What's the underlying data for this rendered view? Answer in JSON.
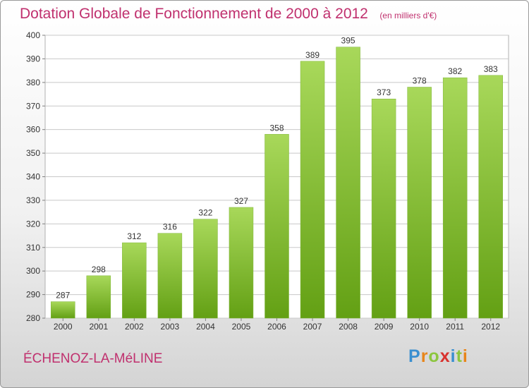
{
  "chart_data": {
    "type": "bar",
    "title": "Dotation Globale de Fonctionnement de 2000 à 2012",
    "subtitle": "(en milliers d'€)",
    "categories": [
      "2000",
      "2001",
      "2002",
      "2003",
      "2004",
      "2005",
      "2006",
      "2007",
      "2008",
      "2009",
      "2010",
      "2011",
      "2012"
    ],
    "values": [
      287,
      298,
      312,
      316,
      322,
      327,
      358,
      389,
      395,
      373,
      378,
      382,
      383
    ],
    "ylim": [
      280,
      400
    ],
    "yticks": [
      280,
      290,
      300,
      310,
      320,
      330,
      340,
      350,
      360,
      370,
      380,
      390,
      400
    ],
    "grid": true,
    "legend": "none",
    "colors": {
      "bar_top": "#a8d85a",
      "bar_bottom": "#63a014",
      "text": "#c0306e",
      "grid": "#c8c8c8"
    }
  },
  "footer": {
    "commune": "ÉCHENOZ-LA-MéLINE",
    "logo": {
      "text": "Proxiti",
      "letters": [
        {
          "ch": "P",
          "color": "#3a8fd0"
        },
        {
          "ch": "r",
          "color": "#e8851a"
        },
        {
          "ch": "o",
          "color": "#8cc63f"
        },
        {
          "ch": "x",
          "color": "#d8322e"
        },
        {
          "ch": "i",
          "color": "#3a8fd0"
        },
        {
          "ch": "t",
          "color": "#8cc63f"
        },
        {
          "ch": "i",
          "color": "#e8851a"
        }
      ]
    }
  }
}
